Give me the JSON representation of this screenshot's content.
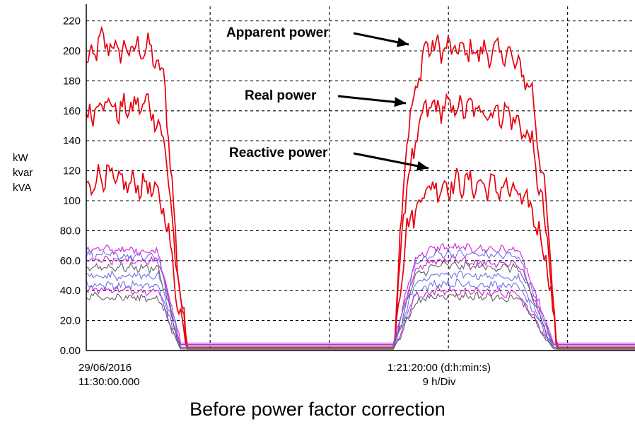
{
  "chart_data": {
    "type": "line",
    "caption": "Before power factor correction",
    "y_unit_labels": [
      "kW",
      "kvar",
      "kVA"
    ],
    "yticks": [
      "0.00",
      "20.0",
      "40.0",
      "60.0",
      "80.0",
      "100",
      "120",
      "140",
      "160",
      "180",
      "200",
      "220"
    ],
    "ylim": [
      0,
      225
    ],
    "x_start_date": "29/06/2016",
    "x_start_time": "11:30:00.000",
    "x_span_text": "1:21:20:00 (d:h:min:s)",
    "x_div_text": "9 h/Div",
    "grid": true,
    "annotations": [
      {
        "text": "Apparent power",
        "series": "Apparent power"
      },
      {
        "text": "Real power",
        "series": "Real power"
      },
      {
        "text": "Reactive power",
        "series": "Reactive power"
      }
    ],
    "colors": {
      "total": "#e8000c",
      "phase_magenta": "#d020e0",
      "phase_blue": "#7070e8",
      "phase_black": "#606060",
      "grid": "#000000"
    },
    "series": [
      {
        "name": "Apparent power",
        "group": "total",
        "color": "#e8000c",
        "profile": [
          {
            "t": 0.0,
            "v": 190
          },
          {
            "t": 0.5,
            "v": 207
          },
          {
            "t": 1.0,
            "v": 200
          },
          {
            "t": 2.0,
            "v": 202
          },
          {
            "t": 2.5,
            "v": 180
          },
          {
            "t": 2.9,
            "v": 60
          },
          {
            "t": 3.2,
            "v": 3
          },
          {
            "t": 9.8,
            "v": 3
          },
          {
            "t": 10.2,
            "v": 140
          },
          {
            "t": 10.8,
            "v": 203
          },
          {
            "t": 12.0,
            "v": 200
          },
          {
            "t": 13.5,
            "v": 198
          },
          {
            "t": 14.2,
            "v": 175
          },
          {
            "t": 14.7,
            "v": 90
          },
          {
            "t": 15.0,
            "v": 3
          },
          {
            "t": 17.5,
            "v": 3
          }
        ]
      },
      {
        "name": "Real power",
        "group": "total",
        "color": "#e8000c",
        "profile": [
          {
            "t": 0.0,
            "v": 155
          },
          {
            "t": 0.5,
            "v": 168
          },
          {
            "t": 1.0,
            "v": 160
          },
          {
            "t": 2.0,
            "v": 165
          },
          {
            "t": 2.5,
            "v": 140
          },
          {
            "t": 2.9,
            "v": 50
          },
          {
            "t": 3.2,
            "v": 2
          },
          {
            "t": 9.8,
            "v": 2
          },
          {
            "t": 10.2,
            "v": 110
          },
          {
            "t": 10.8,
            "v": 162
          },
          {
            "t": 12.0,
            "v": 162
          },
          {
            "t": 13.5,
            "v": 158
          },
          {
            "t": 14.2,
            "v": 140
          },
          {
            "t": 14.7,
            "v": 75
          },
          {
            "t": 15.0,
            "v": 2
          },
          {
            "t": 17.5,
            "v": 2
          }
        ]
      },
      {
        "name": "Reactive power",
        "group": "total",
        "color": "#e8000c",
        "profile": [
          {
            "t": 0.0,
            "v": 108
          },
          {
            "t": 0.5,
            "v": 118
          },
          {
            "t": 1.0,
            "v": 112
          },
          {
            "t": 2.0,
            "v": 110
          },
          {
            "t": 2.5,
            "v": 95
          },
          {
            "t": 2.9,
            "v": 35
          },
          {
            "t": 3.2,
            "v": 1
          },
          {
            "t": 9.8,
            "v": 1
          },
          {
            "t": 10.2,
            "v": 80
          },
          {
            "t": 10.8,
            "v": 108
          },
          {
            "t": 12.0,
            "v": 112
          },
          {
            "t": 13.5,
            "v": 108
          },
          {
            "t": 14.2,
            "v": 95
          },
          {
            "t": 14.7,
            "v": 60
          },
          {
            "t": 15.0,
            "v": 1
          },
          {
            "t": 17.5,
            "v": 1
          }
        ]
      },
      {
        "group": "phase",
        "color": "#d020e0",
        "profile": [
          {
            "t": 0.0,
            "v": 68
          },
          {
            "t": 2.3,
            "v": 66
          },
          {
            "t": 3.0,
            "v": 5
          },
          {
            "t": 9.8,
            "v": 5
          },
          {
            "t": 10.5,
            "v": 62
          },
          {
            "t": 11.2,
            "v": 69
          },
          {
            "t": 13.8,
            "v": 67
          },
          {
            "t": 14.9,
            "v": 5
          },
          {
            "t": 17.5,
            "v": 5
          }
        ]
      },
      {
        "group": "phase",
        "color": "#d020e0",
        "profile": [
          {
            "t": 0.0,
            "v": 60
          },
          {
            "t": 2.3,
            "v": 60
          },
          {
            "t": 3.0,
            "v": 4
          },
          {
            "t": 9.8,
            "v": 4
          },
          {
            "t": 10.5,
            "v": 55
          },
          {
            "t": 11.2,
            "v": 60
          },
          {
            "t": 13.8,
            "v": 58
          },
          {
            "t": 14.9,
            "v": 4
          },
          {
            "t": 17.5,
            "v": 4
          }
        ]
      },
      {
        "group": "phase",
        "color": "#d020e0",
        "profile": [
          {
            "t": 0.0,
            "v": 41
          },
          {
            "t": 2.3,
            "v": 40
          },
          {
            "t": 3.0,
            "v": 1
          },
          {
            "t": 9.8,
            "v": 1
          },
          {
            "t": 10.5,
            "v": 36
          },
          {
            "t": 11.2,
            "v": 40
          },
          {
            "t": 13.8,
            "v": 38
          },
          {
            "t": 14.9,
            "v": 1
          },
          {
            "t": 17.5,
            "v": 1
          }
        ]
      },
      {
        "group": "phase",
        "color": "#7070e8",
        "profile": [
          {
            "t": 0.0,
            "v": 64
          },
          {
            "t": 2.3,
            "v": 62
          },
          {
            "t": 3.0,
            "v": 3
          },
          {
            "t": 9.8,
            "v": 3
          },
          {
            "t": 10.5,
            "v": 58
          },
          {
            "t": 11.2,
            "v": 65
          },
          {
            "t": 13.8,
            "v": 63
          },
          {
            "t": 14.9,
            "v": 3
          },
          {
            "t": 17.5,
            "v": 3
          }
        ]
      },
      {
        "group": "phase",
        "color": "#7070e8",
        "profile": [
          {
            "t": 0.0,
            "v": 50
          },
          {
            "t": 2.3,
            "v": 50
          },
          {
            "t": 3.0,
            "v": 2
          },
          {
            "t": 9.8,
            "v": 2
          },
          {
            "t": 10.5,
            "v": 45
          },
          {
            "t": 11.2,
            "v": 51
          },
          {
            "t": 13.8,
            "v": 49
          },
          {
            "t": 14.9,
            "v": 2
          },
          {
            "t": 17.5,
            "v": 2
          }
        ]
      },
      {
        "group": "phase",
        "color": "#7070e8",
        "profile": [
          {
            "t": 0.0,
            "v": 44
          },
          {
            "t": 2.3,
            "v": 43
          },
          {
            "t": 3.0,
            "v": 1
          },
          {
            "t": 9.8,
            "v": 1
          },
          {
            "t": 10.5,
            "v": 40
          },
          {
            "t": 11.2,
            "v": 45
          },
          {
            "t": 13.8,
            "v": 43
          },
          {
            "t": 14.9,
            "v": 1
          },
          {
            "t": 17.5,
            "v": 1
          }
        ]
      },
      {
        "group": "phase",
        "color": "#606060",
        "profile": [
          {
            "t": 0.0,
            "v": 56
          },
          {
            "t": 2.3,
            "v": 55
          },
          {
            "t": 3.0,
            "v": 2
          },
          {
            "t": 9.8,
            "v": 2
          },
          {
            "t": 10.5,
            "v": 50
          },
          {
            "t": 11.2,
            "v": 57
          },
          {
            "t": 13.8,
            "v": 55
          },
          {
            "t": 14.9,
            "v": 2
          },
          {
            "t": 17.5,
            "v": 2
          }
        ]
      },
      {
        "group": "phase",
        "color": "#606060",
        "profile": [
          {
            "t": 0.0,
            "v": 36
          },
          {
            "t": 2.3,
            "v": 35
          },
          {
            "t": 3.0,
            "v": 1
          },
          {
            "t": 9.8,
            "v": 1
          },
          {
            "t": 10.5,
            "v": 32
          },
          {
            "t": 11.2,
            "v": 37
          },
          {
            "t": 13.8,
            "v": 35
          },
          {
            "t": 14.9,
            "v": 1
          },
          {
            "t": 17.5,
            "v": 1
          }
        ]
      }
    ]
  }
}
